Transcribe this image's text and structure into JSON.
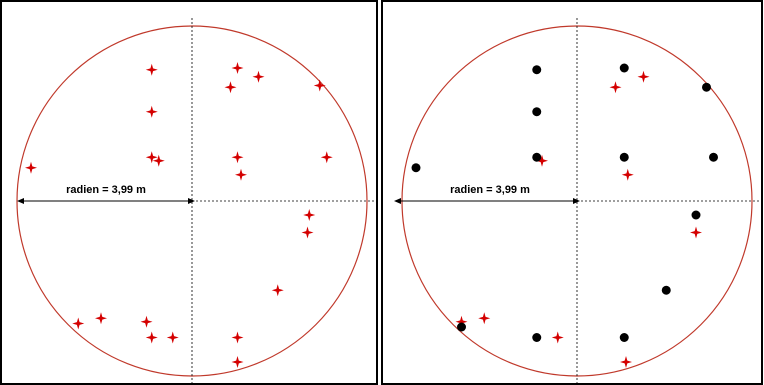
{
  "panels": [
    {
      "id": "left",
      "radius_label": "radien = 3,99 m",
      "colors": {
        "circle": "#c0392b",
        "star": "#d40000",
        "frame": "#000000",
        "axis": "#000000"
      },
      "stars": [
        [
          -0.23,
          0.75
        ],
        [
          0.26,
          0.76
        ],
        [
          0.38,
          0.71
        ],
        [
          0.22,
          0.65
        ],
        [
          0.73,
          0.66
        ],
        [
          -0.23,
          0.51
        ],
        [
          -0.92,
          0.19
        ],
        [
          -0.23,
          0.25
        ],
        [
          -0.19,
          0.23
        ],
        [
          0.26,
          0.25
        ],
        [
          0.28,
          0.15
        ],
        [
          0.77,
          0.25
        ],
        [
          0.67,
          -0.08
        ],
        [
          0.66,
          -0.18
        ],
        [
          0.49,
          -0.51
        ],
        [
          -0.65,
          -0.7
        ],
        [
          -0.52,
          -0.67
        ],
        [
          -0.26,
          -0.69
        ],
        [
          -0.23,
          -0.78
        ],
        [
          -0.11,
          -0.78
        ],
        [
          0.26,
          -0.78
        ],
        [
          0.26,
          -0.92
        ]
      ],
      "dots": []
    },
    {
      "id": "right",
      "radius_label": "radien = 3,99 m",
      "colors": {
        "circle": "#c0392b",
        "star": "#d40000",
        "dot": "#000000",
        "frame": "#000000",
        "axis": "#000000"
      },
      "stars": [
        [
          0.38,
          0.71
        ],
        [
          0.22,
          0.65
        ],
        [
          -0.2,
          0.23
        ],
        [
          0.29,
          0.15
        ],
        [
          0.68,
          -0.18
        ],
        [
          -0.53,
          -0.67
        ],
        [
          -0.66,
          -0.69
        ],
        [
          -0.11,
          -0.78
        ],
        [
          0.28,
          -0.92
        ]
      ],
      "dots": [
        [
          -0.23,
          0.75
        ],
        [
          0.27,
          0.76
        ],
        [
          0.74,
          0.65
        ],
        [
          -0.23,
          0.51
        ],
        [
          -0.92,
          0.19
        ],
        [
          -0.23,
          0.25
        ],
        [
          0.27,
          0.25
        ],
        [
          0.78,
          0.25
        ],
        [
          0.68,
          -0.08
        ],
        [
          0.51,
          -0.51
        ],
        [
          -0.66,
          -0.72
        ],
        [
          -0.23,
          -0.78
        ],
        [
          0.27,
          -0.78
        ]
      ]
    }
  ]
}
